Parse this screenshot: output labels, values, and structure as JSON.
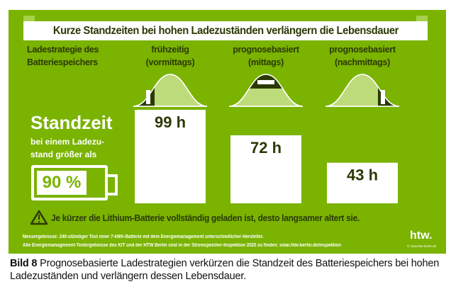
{
  "title": "Kurze Standzeiten bei hohen Ladezuständen verlängern die Lebensdauer",
  "row_header": "Ladestrategie des Batteriespeichers",
  "left": {
    "heading": "Standzeit",
    "sub": "bei einem Ladezu-stand größer als",
    "threshold": "90 %"
  },
  "warning": "Je kürzer die Lithium-Batterie vollständig geladen ist, desto langsamer altert sie.",
  "notes": [
    "Messergebnisse: 240-stündiger Test einer 7-kWh-Batterie mit dem Energiemanagement unterschiedlicher Hersteller.",
    "Alle Energiemanagement-Testergebnisse des KIT und der HTW Berlin sind in der Stromspeicher-Inspektion 2025 zu finden: solar.htw-berlin.de/inspektion"
  ],
  "logo": "htw.",
  "logo_sub": "© solar.htw-berlin.de",
  "caption_label": "Bild 8",
  "caption": "Prognosebasierte Ladestrategien verkürzen die Standzeit des Batteriespeichers bei hohen Ladezuständen und verlängern dessen Lebensdauer.",
  "colors": {
    "background": "#7ab300",
    "dark": "#2b3a05",
    "curve": "#bddb7a",
    "bar": "#ffffff"
  },
  "chart_data": {
    "type": "bar",
    "categories": [
      "frühzeitig (vormittags)",
      "prognosebasiert (mittags)",
      "prognosebasiert (nachmittags)"
    ],
    "category_lines": [
      [
        "frühzeitig",
        "(vormittags)"
      ],
      [
        "prognosebasiert",
        "(mittags)"
      ],
      [
        "prognosebasiert",
        "(nachmittags)"
      ]
    ],
    "charging_window": [
      "morning",
      "midday",
      "afternoon"
    ],
    "values": [
      99,
      72,
      43
    ],
    "labels": [
      "99 h",
      "72 h",
      "43 h"
    ],
    "unit": "h",
    "ylim": [
      0,
      99
    ],
    "grid": false
  }
}
